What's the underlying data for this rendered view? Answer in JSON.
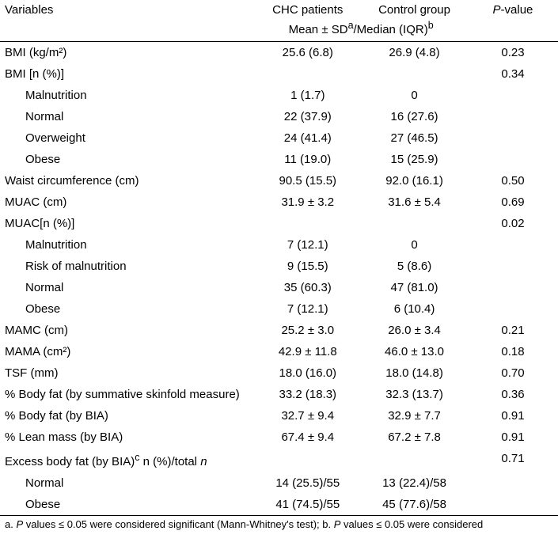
{
  "header": {
    "variables": "Variables",
    "chc": "CHC patients",
    "control": "Control group",
    "pvalue_prefix": "P",
    "pvalue_suffix": "-value",
    "subheader_html": "Mean ± SD<sup>a</sup>/Median (IQR)<sup>b</sup>"
  },
  "rows": [
    {
      "label": "BMI (kg/m²)",
      "chc": "25.6 (6.8)",
      "ctrl": "26.9 (4.8)",
      "p": "0.23"
    },
    {
      "label": "BMI [n (%)]",
      "chc": "",
      "ctrl": "",
      "p": "0.34"
    },
    {
      "label": "Malnutrition",
      "indent": true,
      "chc": "1 (1.7)",
      "ctrl": "0",
      "p": ""
    },
    {
      "label": "Normal",
      "indent": true,
      "chc": "22 (37.9)",
      "ctrl": "16 (27.6)",
      "p": ""
    },
    {
      "label": "Overweight",
      "indent": true,
      "chc": "24 (41.4)",
      "ctrl": "27 (46.5)",
      "p": ""
    },
    {
      "label": "Obese",
      "indent": true,
      "chc": "11 (19.0)",
      "ctrl": "15 (25.9)",
      "p": ""
    },
    {
      "label": "Waist circumference (cm)",
      "chc": "90.5 (15.5)",
      "ctrl": "92.0 (16.1)",
      "p": "0.50"
    },
    {
      "label": "MUAC (cm)",
      "chc": "31.9 ± 3.2",
      "ctrl": "31.6 ± 5.4",
      "p": "0.69"
    },
    {
      "label": "MUAC[n (%)]",
      "chc": "",
      "ctrl": "",
      "p": "0.02"
    },
    {
      "label": "Malnutrition",
      "indent": true,
      "chc": "7 (12.1)",
      "ctrl": "0",
      "p": ""
    },
    {
      "label": "Risk of malnutrition",
      "indent": true,
      "chc": "9 (15.5)",
      "ctrl": "5 (8.6)",
      "p": ""
    },
    {
      "label": "Normal",
      "indent": true,
      "chc": "35 (60.3)",
      "ctrl": "47 (81.0)",
      "p": ""
    },
    {
      "label": "Obese",
      "indent": true,
      "chc": "7 (12.1)",
      "ctrl": "6 (10.4)",
      "p": ""
    },
    {
      "label": "MAMC (cm)",
      "chc": "25.2 ± 3.0",
      "ctrl": "26.0 ± 3.4",
      "p": "0.21"
    },
    {
      "label": "MAMA (cm²)",
      "chc": "42.9 ± 11.8",
      "ctrl": "46.0 ± 13.0",
      "p": "0.18"
    },
    {
      "label": "TSF (mm)",
      "chc": "18.0 (16.0)",
      "ctrl": "18.0 (14.8)",
      "p": "0.70"
    },
    {
      "label": "% Body fat (by summative skinfold measure)",
      "chc": "33.2 (18.3)",
      "ctrl": "32.3 (13.7)",
      "p": "0.36"
    },
    {
      "label": "% Body fat (by BIA)",
      "chc": "32.7 ± 9.4",
      "ctrl": "32.9 ± 7.7",
      "p": "0.91"
    },
    {
      "label": "% Lean mass (by BIA)",
      "chc": "67.4 ± 9.4",
      "ctrl": "67.2 ± 7.8",
      "p": "0.91"
    },
    {
      "label_html": "Excess body fat (by BIA)<sup>c</sup> n (%)/total <em>n</em>",
      "chc": "",
      "ctrl": "",
      "p": "0.71"
    },
    {
      "label": "Normal",
      "indent": true,
      "chc": "14 (25.5)/55",
      "ctrl": "13 (22.4)/58",
      "p": ""
    },
    {
      "label": "Obese",
      "indent": true,
      "chc": "41 (74.5)/55",
      "ctrl": "45 (77.6)/58",
      "p": ""
    }
  ],
  "footnote_html": "a. <em>P</em> values ≤ 0.05 were considered significant (Mann-Whitney's test); b. <em>P</em> values ≤ 0.05 were considered"
}
